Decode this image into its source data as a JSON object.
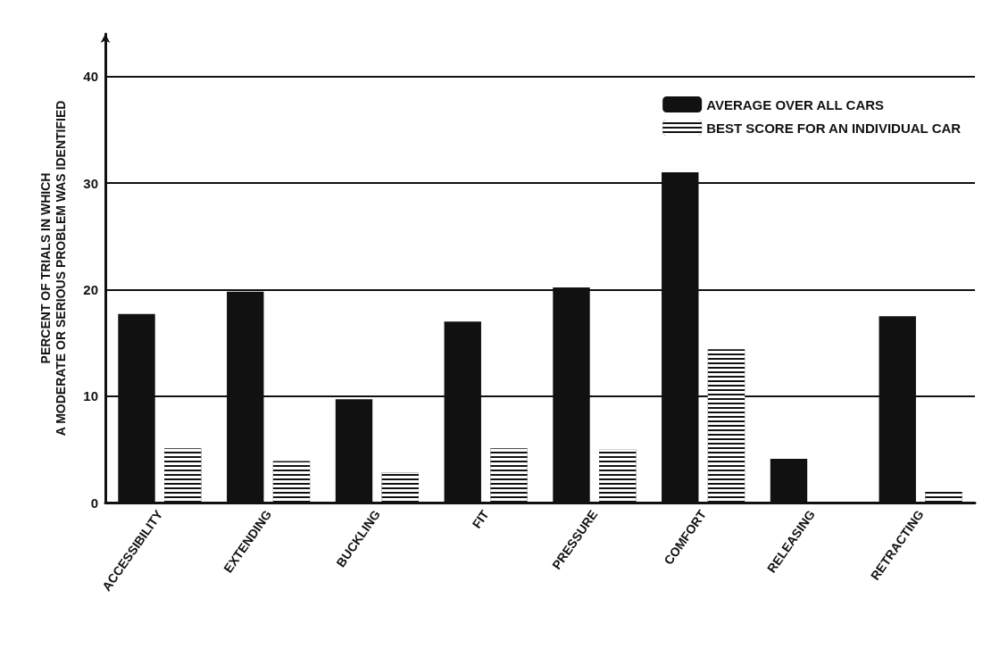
{
  "chart_data": {
    "type": "bar",
    "ylabel": "PERCENT OF TRIALS IN WHICH\nA MODERATE OR SERIOUS PROBLEM WAS IDENTIFIED",
    "categories": [
      "ACCESSIBILITY",
      "EXTENDING",
      "BUCKLING",
      "FIT",
      "PRESSURE",
      "COMFORT",
      "RELEASING",
      "RETRACTING"
    ],
    "series": [
      {
        "name": "AVERAGE OVER ALL CARS",
        "color": "#111111",
        "values": [
          17.7,
          19.8,
          9.7,
          17.0,
          20.2,
          31.0,
          4.1,
          17.5
        ]
      },
      {
        "name": "BEST SCORE FOR AN INDIVIDUAL CAR",
        "color": "#111111",
        "values": [
          5.1,
          3.9,
          2.8,
          5.1,
          5.0,
          14.4,
          0,
          1.0
        ]
      }
    ],
    "ylim": [
      0,
      44
    ],
    "yticks": [
      0,
      10,
      20,
      30,
      40
    ],
    "grid": "y",
    "legend": "top right"
  }
}
